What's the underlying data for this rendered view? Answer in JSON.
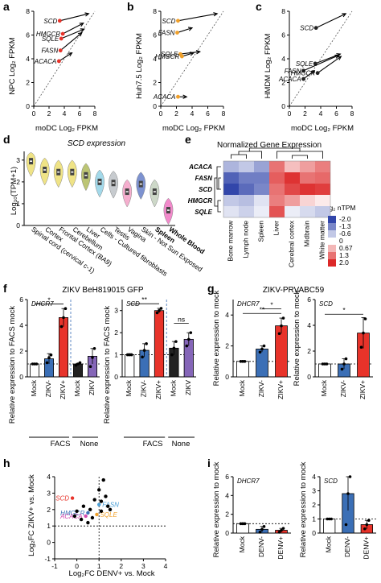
{
  "panels": {
    "a": {
      "letter": "a",
      "xlabel": "moDC Log₂ FPKM",
      "ylabel": "NPC Log₂ FPKM"
    },
    "b": {
      "letter": "b",
      "xlabel": "moDC Log₂ FPKM",
      "ylabel": "Huh7.5 Log₂ FPKM"
    },
    "c": {
      "letter": "c",
      "xlabel": "moDC Log₂ FPKM",
      "ylabel": "HMDM Log₂ FPKM"
    },
    "d": {
      "letter": "d",
      "title": "SCD expression",
      "ylabel": "Log₁₀(TPM+1)"
    },
    "e": {
      "letter": "e",
      "title": "Normalized Gene Expression",
      "legend_title": "Log₂ nTPM"
    },
    "f": {
      "letter": "f",
      "title": "ZIKV BeH819015 GFP",
      "ylabel": "Relative expression to FACS mock",
      "group_facs": "FACS",
      "group_none": "None"
    },
    "g": {
      "letter": "g",
      "title": "ZIKV-PRVABC59",
      "ylabel": "Relative expression to mock"
    },
    "h": {
      "letter": "h",
      "xlabel": "Log₂FC DENV+ vs. Mock",
      "ylabel": "Log₂FC ZIKV+ vs. Mock"
    },
    "i": {
      "letter": "i",
      "ylabel": "Relative expression to mock"
    }
  },
  "chart_data": [
    {
      "panel": "a",
      "type": "scatter",
      "xlabel": "moDC Log₂ FPKM",
      "ylabel": "NPC Log₂ FPKM",
      "xlim": [
        0,
        8
      ],
      "ylim": [
        0,
        8
      ],
      "xticks": [
        0,
        2,
        4,
        6,
        8
      ],
      "yticks": [
        0,
        2,
        4,
        6,
        8
      ],
      "diagonal": true,
      "points": [
        {
          "gene": "SCD",
          "x": 3.4,
          "y": 7.2,
          "x_to": 7.2,
          "y_to": 7.8
        },
        {
          "gene": "HMGCR",
          "x": 3.8,
          "y": 6.1,
          "x_to": 6.5,
          "y_to": 7.0
        },
        {
          "gene": "SQLE",
          "x": 3.6,
          "y": 5.7,
          "x_to": 6.6,
          "y_to": 6.5
        },
        {
          "gene": "FASN",
          "x": 3.5,
          "y": 4.7,
          "x_to": 6.3,
          "y_to": 6.2
        },
        {
          "gene": "ACACA",
          "x": 3.3,
          "y": 3.8,
          "x_to": 5.0,
          "y_to": 4.5
        }
      ],
      "point_color": "#e8332a"
    },
    {
      "panel": "b",
      "type": "scatter",
      "xlabel": "moDC Log₂ FPKM",
      "ylabel": "Huh7.5 Log₂ FPKM",
      "xlim": [
        0,
        8
      ],
      "ylim": [
        0,
        8
      ],
      "xticks": [
        0,
        2,
        4,
        6,
        8
      ],
      "yticks": [
        0,
        2,
        4,
        6,
        8
      ],
      "diagonal": true,
      "points": [
        {
          "gene": "SCD",
          "x": 2.2,
          "y": 7.2,
          "x_to": 7.2,
          "y_to": 7.8
        },
        {
          "gene": "FASN",
          "x": 2.1,
          "y": 6.2,
          "x_to": 4.0,
          "y_to": 6.6
        },
        {
          "gene": "SQLE",
          "x": 2.5,
          "y": 4.4,
          "x_to": 5.0,
          "y_to": 4.6
        },
        {
          "gene": "HMGCR",
          "x": 2.7,
          "y": 4.2,
          "x_to": 4.2,
          "y_to": 4.5
        },
        {
          "gene": "ACACA",
          "x": 2.2,
          "y": 0.8,
          "x_to": 3.3,
          "y_to": 0.8
        }
      ],
      "point_color": "#f0a02a"
    },
    {
      "panel": "c",
      "type": "scatter",
      "xlabel": "moDC Log₂ FPKM",
      "ylabel": "HMDM Log₂ FPKM",
      "xlim": [
        0,
        8
      ],
      "ylim": [
        0,
        8
      ],
      "xticks": [
        0,
        2,
        4,
        6,
        8
      ],
      "yticks": [
        0,
        2,
        4,
        6,
        8
      ],
      "diagonal": true,
      "points": [
        {
          "gene": "SCD",
          "x": 3.4,
          "y": 6.6,
          "x_to": 7.2,
          "y_to": 7.8
        },
        {
          "gene": "SQLE",
          "x": 3.3,
          "y": 3.6,
          "x_to": 6.5,
          "y_to": 4.4
        },
        {
          "gene": "FASN",
          "x": 1.8,
          "y": 3.0,
          "x_to": 6.3,
          "y_to": 4.3
        },
        {
          "gene": "HMGCR",
          "x": 3.6,
          "y": 2.8,
          "x_to": 6.6,
          "y_to": 4.2
        },
        {
          "gene": "ACACA",
          "x": 1.8,
          "y": 2.3,
          "x_to": 3.2,
          "y_to": 3.0
        }
      ],
      "point_color": "#222222"
    },
    {
      "panel": "d",
      "type": "violin",
      "title": "SCD expression",
      "ylabel": "Log₁₀(TPM+1)",
      "ylim": [
        0,
        3.4
      ],
      "yticks": [
        0,
        1,
        2,
        3
      ],
      "categories": [
        "Spinal cord (cervical c-1)",
        "Cortex",
        "Frontal Cortex (BA9)",
        "Cerebellum",
        "Liver",
        "Cells - Cultured fibroblasts",
        "Testis",
        "Vagina",
        "Skin - Not Sun Exposed",
        "Spleen",
        "Whole Blood"
      ],
      "medians": [
        2.95,
        2.55,
        2.45,
        2.45,
        2.3,
        2.0,
        1.95,
        1.55,
        1.9,
        1.55,
        0.7
      ],
      "colors": [
        "#eee07a",
        "#eee07a",
        "#eee07a",
        "#eee07a",
        "#b5bf66",
        "#9ad5e8",
        "#c1c6ca",
        "#f4a6c9",
        "#6f87cc",
        "#c8d4c3",
        "#f17ec6"
      ]
    },
    {
      "panel": "e",
      "type": "heatmap",
      "title": "Normalized Gene Expression",
      "rows": [
        "ACACA",
        "FASN",
        "SCD",
        "HMGCR",
        "SQLE"
      ],
      "columns": [
        "Bone marrow",
        "Lymph node",
        "Spleen",
        "Liver",
        "Cerebral cortex",
        "Midbrain",
        "White matter"
      ],
      "values": [
        [
          -0.8,
          -0.6,
          -1.0,
          1.3,
          0.6,
          0.9,
          1.2
        ],
        [
          -1.7,
          -1.4,
          -1.4,
          1.5,
          1.9,
          1.3,
          1.4
        ],
        [
          -2.0,
          -1.6,
          -1.3,
          1.3,
          1.7,
          1.9,
          1.8
        ],
        [
          -0.6,
          -0.7,
          -0.3,
          1.2,
          0.9,
          0.4,
          0.2
        ],
        [
          -0.3,
          -0.5,
          -0.2,
          1.6,
          -0.2,
          -0.4,
          -0.6
        ]
      ],
      "legend_title": "Log₂ nTPM",
      "legend_ticks": [
        "-2.0",
        "-1.3",
        "-0.6",
        "0",
        "0.67",
        "1.3",
        "2.0"
      ]
    },
    {
      "panel": "f",
      "type": "bar",
      "title": "ZIKV BeH819015 GFP",
      "ylabel": "Relative expression to FACS mock",
      "plots": [
        {
          "gene": "DHCR7",
          "ylim": [
            0,
            6
          ],
          "categories": [
            "Mock",
            "ZIKV-",
            "ZIKV+",
            "Mock",
            "ZIKV"
          ],
          "values": [
            1.0,
            1.4,
            4.6,
            1.0,
            1.6
          ],
          "errors": [
            0.05,
            0.4,
            0.7,
            0.05,
            0.6
          ],
          "points": [
            [
              1.0,
              1.0,
              1.0
            ],
            [
              1.1,
              1.5,
              1.7
            ],
            [
              3.9,
              4.6,
              5.3
            ],
            [
              0.9,
              1.0,
              1.1
            ],
            [
              0.8,
              1.5,
              2.2
            ]
          ],
          "colors": [
            "#ffffff",
            "#3b6fb6",
            "#e8332a",
            "#222222",
            "#8566b8"
          ],
          "significance": [
            {
              "from": 0,
              "to": 2,
              "label": "*"
            }
          ]
        },
        {
          "gene": "SCD",
          "ylim": [
            0,
            3.5
          ],
          "categories": [
            "Mock",
            "ZIKV-",
            "ZIKV+",
            "Mock",
            "ZIKV"
          ],
          "values": [
            1.0,
            1.2,
            3.0,
            1.3,
            1.7
          ],
          "errors": [
            0.05,
            0.3,
            0.1,
            0.3,
            0.3
          ],
          "points": [
            [
              1.0,
              1.0,
              1.0
            ],
            [
              0.9,
              1.2,
              1.5
            ],
            [
              2.9,
              3.0,
              3.1
            ],
            [
              1.0,
              1.3,
              1.6
            ],
            [
              1.4,
              1.7,
              2.0
            ]
          ],
          "colors": [
            "#ffffff",
            "#3b6fb6",
            "#e8332a",
            "#222222",
            "#8566b8"
          ],
          "significance": [
            {
              "from": 0,
              "to": 2,
              "label": "**"
            },
            {
              "from": 3,
              "to": 4,
              "label": "ns"
            }
          ]
        }
      ]
    },
    {
      "panel": "g",
      "type": "bar",
      "title": "ZIKV-PRVABC59",
      "ylabel": "Relative expression to mock",
      "plots": [
        {
          "gene": "DHCR7",
          "ylim": [
            0,
            5
          ],
          "categories": [
            "Mock",
            "ZIKV-",
            "ZIKV+"
          ],
          "values": [
            1.0,
            1.8,
            3.3
          ],
          "errors": [
            0.05,
            0.2,
            0.5
          ],
          "points": [
            [
              1.0,
              1.0,
              1.0
            ],
            [
              1.6,
              1.8,
              2.0
            ],
            [
              2.8,
              3.3,
              3.8
            ]
          ],
          "colors": [
            "#ffffff",
            "#3b6fb6",
            "#e8332a"
          ],
          "significance": [
            {
              "from": 0,
              "to": 2,
              "label": "**"
            },
            {
              "from": 1,
              "to": 2,
              "label": "*"
            }
          ]
        },
        {
          "gene": "SCD",
          "ylim": [
            0,
            6
          ],
          "categories": [
            "Mock",
            "ZIKV-",
            "ZIKV+"
          ],
          "values": [
            1.0,
            1.0,
            3.4
          ],
          "errors": [
            0.05,
            0.4,
            1.2
          ],
          "points": [
            [
              1.0,
              1.0,
              1.0
            ],
            [
              0.6,
              1.0,
              1.4
            ],
            [
              2.3,
              3.4,
              4.5
            ]
          ],
          "colors": [
            "#ffffff",
            "#3b6fb6",
            "#e8332a"
          ],
          "significance": [
            {
              "from": 0,
              "to": 2,
              "label": "*"
            }
          ]
        }
      ]
    },
    {
      "panel": "h",
      "type": "scatter",
      "xlabel": "Log₂FC DENV+ vs. Mock",
      "ylabel": "Log₂FC ZIKV+ vs. Mock",
      "xlim": [
        -1,
        4
      ],
      "ylim": [
        -1,
        4
      ],
      "xticks": [
        -1,
        0,
        1,
        2,
        3,
        4
      ],
      "yticks": [
        -1,
        0,
        1,
        2,
        3,
        4
      ],
      "points": [
        {
          "x": -0.2,
          "y": 2.7,
          "gene": "SCD",
          "color": "#e8332a"
        },
        {
          "x": 0.5,
          "y": 1.8,
          "gene": "HMGCR",
          "color": "#3b6fb6"
        },
        {
          "x": 0.4,
          "y": 1.6,
          "gene": "ACACA",
          "color": "#d24bb0"
        },
        {
          "x": 1.0,
          "y": 2.3,
          "gene": "FASN",
          "color": "#4aa0d8"
        },
        {
          "x": 0.9,
          "y": 1.7,
          "gene": "SQLE",
          "color": "#f0a02a"
        },
        {
          "x": 1.2,
          "y": 3.8,
          "color": "#000000"
        },
        {
          "x": 1.0,
          "y": 3.2,
          "color": "#000000"
        },
        {
          "x": 1.3,
          "y": 2.8,
          "color": "#000000"
        },
        {
          "x": 1.1,
          "y": 2.5,
          "color": "#000000"
        },
        {
          "x": 0.8,
          "y": 2.6,
          "color": "#000000"
        },
        {
          "x": 1.4,
          "y": 2.2,
          "color": "#000000"
        },
        {
          "x": 0.3,
          "y": 2.2,
          "color": "#000000"
        },
        {
          "x": 0.6,
          "y": 2.0,
          "color": "#000000"
        },
        {
          "x": 0.0,
          "y": 1.9,
          "color": "#000000"
        },
        {
          "x": 0.7,
          "y": 1.5,
          "color": "#000000"
        },
        {
          "x": 0.2,
          "y": 1.4,
          "color": "#000000"
        },
        {
          "x": -0.1,
          "y": 1.6,
          "color": "#000000"
        },
        {
          "x": 1.1,
          "y": 1.9,
          "color": "#000000"
        },
        {
          "x": 1.5,
          "y": 2.0,
          "color": "#000000"
        },
        {
          "x": 0.5,
          "y": 1.2,
          "color": "#000000"
        }
      ]
    },
    {
      "panel": "i",
      "type": "bar",
      "ylabel": "Relative expression to mock",
      "plots": [
        {
          "gene": "DHCR7",
          "ylim": [
            0,
            6
          ],
          "categories": [
            "Mock",
            "DENV-",
            "DENV+"
          ],
          "values": [
            1.0,
            0.4,
            0.3
          ],
          "errors": [
            0.05,
            0.3,
            0.2
          ],
          "points": [
            [
              1.0,
              1.0,
              1.0
            ],
            [
              0.1,
              0.4,
              0.7
            ],
            [
              0.1,
              0.3,
              0.5
            ]
          ],
          "colors": [
            "#ffffff",
            "#3b6fb6",
            "#e8332a"
          ],
          "significance": []
        },
        {
          "gene": "SCD",
          "ylim": [
            0,
            4
          ],
          "categories": [
            "Mock",
            "DENV-",
            "DENV+"
          ],
          "values": [
            1.0,
            2.8,
            0.6
          ],
          "errors": [
            0.05,
            1.2,
            0.3
          ],
          "points": [
            [
              1.0,
              1.0,
              1.0
            ],
            [
              0.6,
              2.8,
              4.0
            ],
            [
              0.3,
              0.6,
              0.9
            ]
          ],
          "colors": [
            "#ffffff",
            "#3b6fb6",
            "#e8332a"
          ],
          "significance": []
        }
      ]
    }
  ]
}
